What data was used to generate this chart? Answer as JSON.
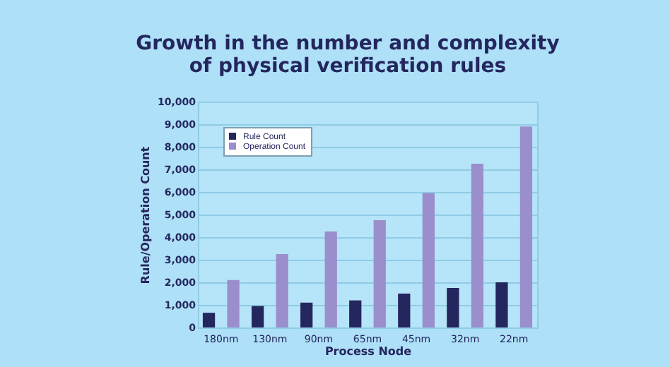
{
  "chart_data": {
    "type": "bar",
    "title": "Growth in the number and complexity of physical verification rules",
    "xlabel": "Process Node",
    "ylabel": "Rule/Operation Count",
    "categories": [
      "180nm",
      "130nm",
      "90nm",
      "65nm",
      "45nm",
      "32nm",
      "22nm"
    ],
    "series": [
      {
        "name": "Rule Count",
        "color": "#24265e",
        "values": [
          650,
          950,
          1100,
          1200,
          1500,
          1750,
          2000
        ]
      },
      {
        "name": "Operation Count",
        "color": "#9a8fcc",
        "values": [
          2100,
          3250,
          4250,
          4750,
          5950,
          7250,
          8900
        ]
      }
    ],
    "ylim": [
      0,
      10000
    ],
    "yticks": [
      0,
      {
        "value": 1000,
        "label": "1,000"
      },
      {
        "value": 2000,
        "label": "2,000"
      },
      {
        "value": 3000,
        "label": "3,000"
      },
      {
        "value": 4000,
        "label": "4,000"
      },
      {
        "value": 5000,
        "label": "5,000"
      },
      {
        "value": 6000,
        "label": "6,000"
      },
      {
        "value": 7000,
        "label": "7,000"
      },
      {
        "value": 8000,
        "label": "8,000"
      },
      {
        "value": 9000,
        "label": "9,000"
      },
      {
        "value": 10000,
        "label": "10,000"
      }
    ],
    "grid": "y",
    "legend": "top left"
  }
}
